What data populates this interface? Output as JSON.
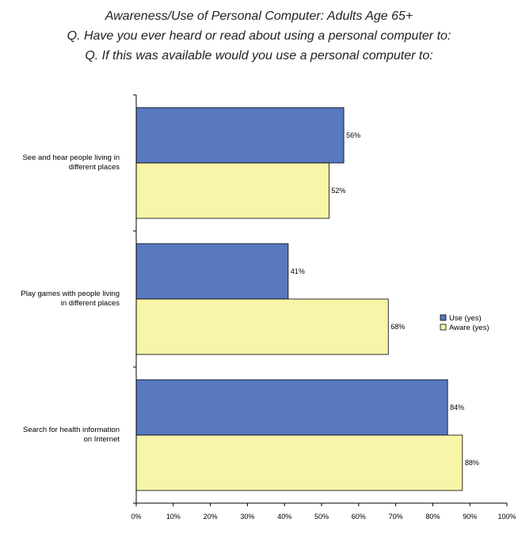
{
  "titles": [
    "Awareness/Use of Personal Computer: Adults Age 65+",
    "Q. Have you ever heard or read about using a personal computer to:",
    "Q. If this was available would you use a personal computer to:"
  ],
  "chart_data": {
    "type": "bar",
    "orientation": "horizontal",
    "categories": [
      [
        "See and hear people living in",
        "different places"
      ],
      [
        "Play games with people living",
        "in different places"
      ],
      [
        "Search for health information",
        "on Internet"
      ]
    ],
    "series": [
      {
        "name": "Use (yes)",
        "values": [
          56,
          41,
          84
        ],
        "labels": [
          "56%",
          "41%",
          "84%"
        ],
        "color": "#5878C0"
      },
      {
        "name": "Aware (yes)",
        "values": [
          52,
          68,
          88
        ],
        "labels": [
          "52%",
          "68%",
          "88%"
        ],
        "color": "#F8F4A8"
      }
    ],
    "x_ticks": [
      "0%",
      "10%",
      "20%",
      "30%",
      "40%",
      "50%",
      "60%",
      "70%",
      "80%",
      "90%",
      "100%"
    ],
    "xlim": [
      0,
      100
    ],
    "legend_position": "right",
    "grid": false
  }
}
